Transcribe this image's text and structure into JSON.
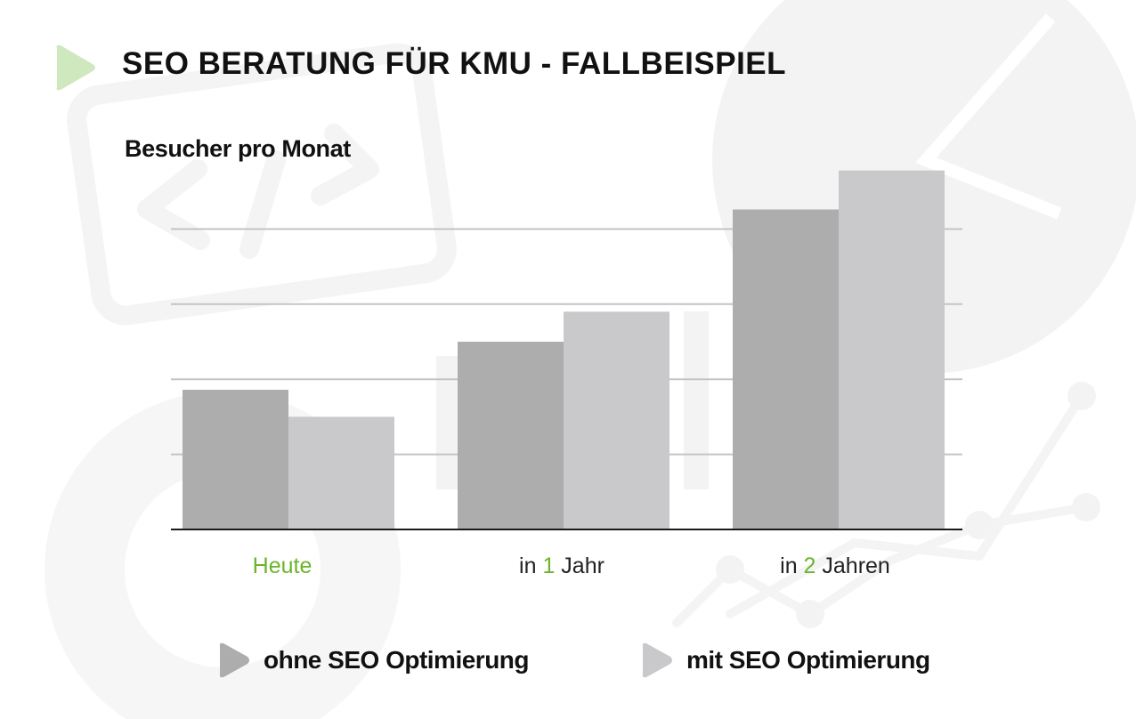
{
  "header": {
    "title": "SEO BERATUNG FÜR KMU - FALLBEISPIEL",
    "accent_color": "#cfe8bd"
  },
  "chart_data": {
    "type": "bar",
    "title": "Besucher pro Monat",
    "categories": [
      {
        "pre": "",
        "accent": "Heute",
        "post": ""
      },
      {
        "pre": "in ",
        "accent": "1",
        "post": " Jahr"
      },
      {
        "pre": "in ",
        "accent": "2",
        "post": " Jahren"
      }
    ],
    "series": [
      {
        "name": "ohne SEO Optimierung",
        "color": "#adadad",
        "values": [
          1.86,
          2.5,
          4.26
        ]
      },
      {
        "name": "mit SEO Optimierung",
        "color": "#c9c9cc",
        "values": [
          1.5,
          2.9,
          4.78
        ]
      }
    ],
    "ylim": [
      0,
      5
    ],
    "gridlines": [
      1,
      2,
      3,
      4
    ],
    "xlabel": "",
    "ylabel": "",
    "legend_position": "bottom",
    "accent_color": "#6cb42c"
  }
}
